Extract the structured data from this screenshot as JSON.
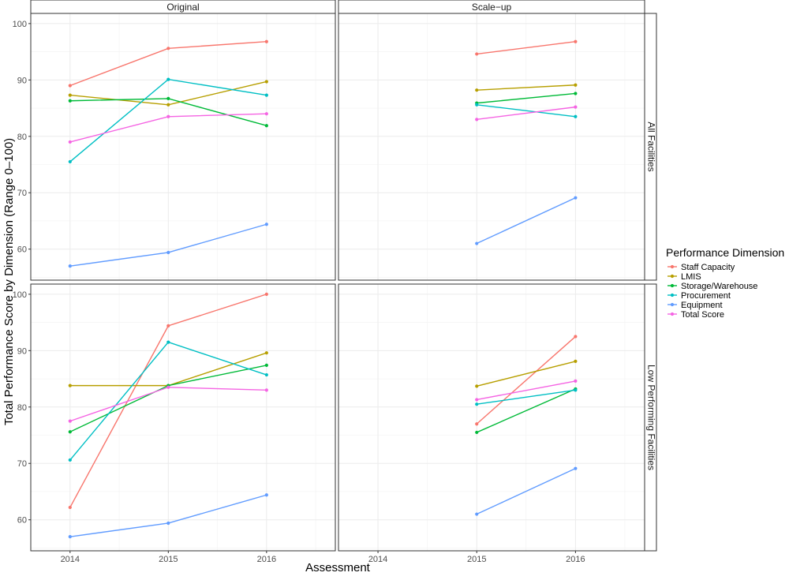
{
  "chart_data": {
    "type": "line",
    "xlabel": "Assessment",
    "ylabel": "Total Performance Score by Dimension (Range 0–100)",
    "x": [
      2014,
      2015,
      2016
    ],
    "xlim": [
      2013.6,
      2016.7
    ],
    "ylim": [
      54.5,
      101.8
    ],
    "yticks": [
      60,
      70,
      80,
      90,
      100
    ],
    "grid": true,
    "legend_title": "Performance Dimension",
    "legend_position": "right",
    "columns": [
      "Original",
      "Scale−up"
    ],
    "rows": [
      "All Facilities",
      "Low Performing Facilities"
    ],
    "series": [
      {
        "name": "Staff Capacity",
        "color": "#F8766D"
      },
      {
        "name": "LMIS",
        "color": "#B79F00"
      },
      {
        "name": "Storage/Warehouse",
        "color": "#00BA38"
      },
      {
        "name": "Procurement",
        "color": "#00BFC4"
      },
      {
        "name": "Equipment",
        "color": "#619CFF"
      },
      {
        "name": "Total Score",
        "color": "#F564E3"
      }
    ],
    "panels": [
      {
        "row": "All Facilities",
        "column": "Original",
        "values": {
          "Staff Capacity": [
            89.0,
            95.6,
            96.8
          ],
          "LMIS": [
            87.3,
            85.6,
            89.7
          ],
          "Storage/Warehouse": [
            86.3,
            86.7,
            81.9
          ],
          "Procurement": [
            75.5,
            90.1,
            87.3
          ],
          "Equipment": [
            57.0,
            59.4,
            64.4
          ],
          "Total Score": [
            79.0,
            83.5,
            84.0
          ]
        }
      },
      {
        "row": "All Facilities",
        "column": "Scale−up",
        "values": {
          "Staff Capacity": [
            null,
            94.6,
            96.8
          ],
          "LMIS": [
            null,
            88.2,
            89.1
          ],
          "Storage/Warehouse": [
            null,
            85.9,
            87.6
          ],
          "Procurement": [
            null,
            85.6,
            83.5
          ],
          "Equipment": [
            null,
            61.0,
            69.1
          ],
          "Total Score": [
            null,
            83.0,
            85.2
          ]
        }
      },
      {
        "row": "Low Performing Facilities",
        "column": "Original",
        "values": {
          "Staff Capacity": [
            62.2,
            94.4,
            100.0
          ],
          "LMIS": [
            83.8,
            83.8,
            89.6
          ],
          "Storage/Warehouse": [
            75.6,
            83.8,
            87.4
          ],
          "Procurement": [
            70.6,
            91.5,
            85.7
          ],
          "Equipment": [
            57.0,
            59.4,
            64.4
          ],
          "Total Score": [
            77.5,
            83.5,
            83.0
          ]
        }
      },
      {
        "row": "Low Performing Facilities",
        "column": "Scale−up",
        "values": {
          "Staff Capacity": [
            null,
            77.0,
            92.5
          ],
          "LMIS": [
            null,
            83.7,
            88.1
          ],
          "Storage/Warehouse": [
            null,
            75.5,
            83.2
          ],
          "Procurement": [
            null,
            80.5,
            83.0
          ],
          "Equipment": [
            null,
            61.0,
            69.1
          ],
          "Total Score": [
            null,
            81.3,
            84.6
          ]
        }
      }
    ]
  }
}
